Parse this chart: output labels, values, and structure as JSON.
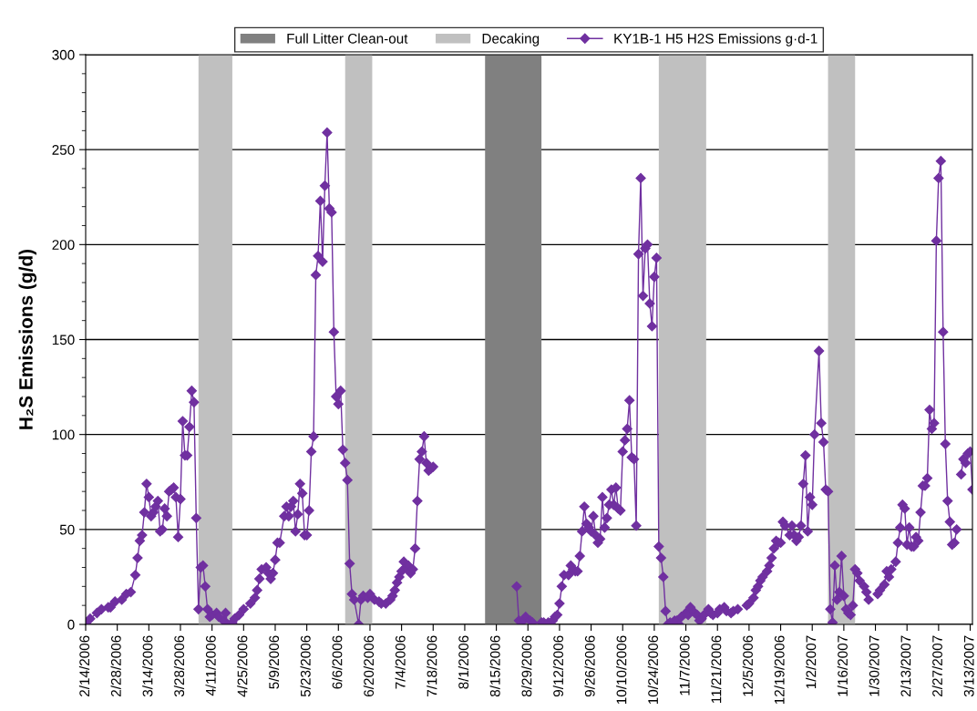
{
  "chart_data": {
    "type": "line",
    "ylabel": "H₂S Emissions (g/d)",
    "legend": "top",
    "grid": "y",
    "marker": "diamond",
    "line_style": "solid",
    "xlim": [
      "2006-02-14",
      "2007-03-14"
    ],
    "ylim": [
      0,
      300
    ],
    "yticks": [
      0,
      {
        "value": 10,
        "label": null
      },
      {
        "value": 20,
        "label": null
      },
      {
        "value": 30,
        "label": null
      },
      {
        "value": 40,
        "label": null
      },
      50,
      {
        "value": 60,
        "label": null
      },
      {
        "value": 70,
        "label": null
      },
      {
        "value": 80,
        "label": null
      },
      {
        "value": 90,
        "label": null
      },
      100,
      {
        "value": 110,
        "label": null
      },
      {
        "value": 120,
        "label": null
      },
      {
        "value": 130,
        "label": null
      },
      {
        "value": 140,
        "label": null
      },
      150,
      {
        "value": 160,
        "label": null
      },
      {
        "value": 170,
        "label": null
      },
      {
        "value": 180,
        "label": null
      },
      {
        "value": 190,
        "label": null
      },
      200,
      {
        "value": 210,
        "label": null
      },
      {
        "value": 220,
        "label": null
      },
      {
        "value": 230,
        "label": null
      },
      {
        "value": 240,
        "label": null
      },
      250,
      {
        "value": 260,
        "label": null
      },
      {
        "value": 270,
        "label": null
      },
      {
        "value": 280,
        "label": null
      },
      {
        "value": 290,
        "label": null
      },
      300
    ],
    "xticks": [
      {
        "value": "2006-02-14",
        "label": "2/14/2006"
      },
      {
        "value": "2006-02-28",
        "label": "2/28/2006"
      },
      {
        "value": "2006-03-14",
        "label": "3/14/2006"
      },
      {
        "value": "2006-03-28",
        "label": "3/28/2006"
      },
      {
        "value": "2006-04-11",
        "label": "4/11/2006"
      },
      {
        "value": "2006-04-25",
        "label": "4/25/2006"
      },
      {
        "value": "2006-05-09",
        "label": "5/9/2006"
      },
      {
        "value": "2006-05-23",
        "label": "5/23/2006"
      },
      {
        "value": "2006-06-06",
        "label": "6/6/2006"
      },
      {
        "value": "2006-06-20",
        "label": "6/20/2006"
      },
      {
        "value": "2006-07-04",
        "label": "7/4/2006"
      },
      {
        "value": "2006-07-18",
        "label": "7/18/2006"
      },
      {
        "value": "2006-08-01",
        "label": "8/1/2006"
      },
      {
        "value": "2006-08-15",
        "label": "8/15/2006"
      },
      {
        "value": "2006-08-29",
        "label": "8/29/2006"
      },
      {
        "value": "2006-09-12",
        "label": "9/12/2006"
      },
      {
        "value": "2006-09-26",
        "label": "9/26/2006"
      },
      {
        "value": "2006-10-10",
        "label": "10/10/2006"
      },
      {
        "value": "2006-10-24",
        "label": "10/24/2006"
      },
      {
        "value": "2006-11-07",
        "label": "11/7/2006"
      },
      {
        "value": "2006-11-21",
        "label": "11/21/2006"
      },
      {
        "value": "2006-12-05",
        "label": "12/5/2006"
      },
      {
        "value": "2006-12-19",
        "label": "12/19/2006"
      },
      {
        "value": "2007-01-02",
        "label": "1/2/2007"
      },
      {
        "value": "2007-01-16",
        "label": "1/16/2007"
      },
      {
        "value": "2007-01-30",
        "label": "1/30/2007"
      },
      {
        "value": "2007-02-13",
        "label": "2/13/2007"
      },
      {
        "value": "2007-02-27",
        "label": "2/27/2007"
      },
      {
        "value": "2007-03-13",
        "label": "3/13/2007"
      }
    ],
    "bands": [
      {
        "axis": "x",
        "from": "2006-08-10",
        "to": "2006-09-04",
        "label": "Full Litter Clean-out",
        "color": "#808080"
      },
      {
        "axis": "x",
        "from": "2006-04-05",
        "to": "2006-04-20",
        "label": "Decaking",
        "color": "#c0c0c0"
      },
      {
        "axis": "x",
        "from": "2006-06-09",
        "to": "2006-06-21",
        "color": "#c0c0c0"
      },
      {
        "axis": "x",
        "from": "2006-10-26",
        "to": "2006-11-16",
        "color": "#c0c0c0"
      },
      {
        "axis": "x",
        "from": "2007-01-09",
        "to": "2007-01-21",
        "color": "#c0c0c0"
      }
    ],
    "series": [
      {
        "name": "KY1B-1 H5 H2S Emissions g·d-1",
        "color": "#7030a0",
        "x": [
          "2006-02-14",
          "2006-02-16",
          "2006-02-19",
          "2006-02-21",
          "2006-02-24",
          "2006-02-25",
          "2006-02-27",
          "2006-03-02",
          "2006-03-04",
          "2006-03-06",
          "2006-03-08",
          "2006-03-09",
          "2006-03-10",
          "2006-03-11",
          "2006-03-12",
          "2006-03-13",
          "2006-03-14",
          "2006-03-15",
          "2006-03-16",
          "2006-03-17",
          "2006-03-18",
          "2006-03-19",
          "2006-03-20",
          "2006-03-21",
          "2006-03-22",
          "2006-03-23",
          "2006-03-24",
          "2006-03-25",
          "2006-03-26",
          "2006-03-27",
          "2006-03-28",
          "2006-03-29",
          "2006-03-30",
          "2006-03-31",
          "2006-04-01",
          "2006-04-02",
          "2006-04-03",
          "2006-04-04",
          "2006-04-05",
          "2006-04-06",
          "2006-04-07",
          "2006-04-08",
          "2006-04-09",
          "2006-04-10",
          "2006-04-11",
          "2006-04-13",
          "2006-04-14",
          "2006-04-16",
          "2006-04-17",
          "2006-04-18",
          "2006-04-20",
          "2006-04-21",
          "2006-04-23",
          "2006-04-25",
          "2006-04-28",
          "2006-04-30",
          "2006-05-01",
          "2006-05-02",
          "2006-05-03",
          "2006-05-05",
          "2006-05-06",
          "2006-05-07",
          "2006-05-08",
          "2006-05-09",
          "2006-05-10",
          "2006-05-11",
          "2006-05-13",
          "2006-05-14",
          "2006-05-15",
          "2006-05-16",
          "2006-05-17",
          "2006-05-18",
          "2006-05-19",
          "2006-05-20",
          "2006-05-21",
          "2006-05-22",
          "2006-05-23",
          "2006-05-24",
          "2006-05-25",
          "2006-05-26",
          "2006-05-27",
          "2006-05-28",
          "2006-05-29",
          "2006-05-30",
          "2006-05-31",
          "2006-06-01",
          "2006-06-02",
          "2006-06-03",
          "2006-06-04",
          "2006-06-05",
          "2006-06-06",
          "2006-06-07",
          "2006-06-08",
          "2006-06-09",
          "2006-06-10",
          "2006-06-11",
          "2006-06-12",
          "2006-06-13",
          "2006-06-15",
          "2006-06-16",
          "2006-06-17",
          "2006-06-19",
          "2006-06-20",
          "2006-06-22",
          "2006-06-24",
          "2006-06-25",
          "2006-06-27",
          "2006-06-29",
          "2006-06-30",
          "2006-07-01",
          "2006-07-02",
          "2006-07-03",
          "2006-07-04",
          "2006-07-05",
          "2006-07-06",
          "2006-07-07",
          "2006-07-08",
          "2006-07-09",
          "2006-07-10",
          "2006-07-11",
          "2006-07-12",
          "2006-07-13",
          "2006-07-14",
          "2006-07-15",
          "2006-07-16",
          "2006-07-17",
          "2006-07-18",
          "2006-08-01",
          "2006-08-24",
          "2006-08-25",
          "2006-08-27",
          "2006-08-28",
          "2006-08-30",
          "2006-08-31",
          "2006-09-04",
          "2006-09-05",
          "2006-09-07",
          "2006-09-09",
          "2006-09-10",
          "2006-09-11",
          "2006-09-12",
          "2006-09-13",
          "2006-09-14",
          "2006-09-16",
          "2006-09-17",
          "2006-09-18",
          "2006-09-19",
          "2006-09-20",
          "2006-09-21",
          "2006-09-22",
          "2006-09-23",
          "2006-09-24",
          "2006-09-25",
          "2006-09-26",
          "2006-09-27",
          "2006-09-28",
          "2006-09-29",
          "2006-09-30",
          "2006-10-01",
          "2006-10-02",
          "2006-10-03",
          "2006-10-04",
          "2006-10-05",
          "2006-10-06",
          "2006-10-07",
          "2006-10-08",
          "2006-10-09",
          "2006-10-10",
          "2006-10-11",
          "2006-10-12",
          "2006-10-13",
          "2006-10-14",
          "2006-10-15",
          "2006-10-16",
          "2006-10-17",
          "2006-10-18",
          "2006-10-19",
          "2006-10-20",
          "2006-10-21",
          "2006-10-22",
          "2006-10-23",
          "2006-10-24",
          "2006-10-25",
          "2006-10-26",
          "2006-10-27",
          "2006-10-28",
          "2006-10-29",
          "2006-10-30",
          "2006-10-31",
          "2006-11-02",
          "2006-11-03",
          "2006-11-04",
          "2006-11-05",
          "2006-11-07",
          "2006-11-08",
          "2006-11-09",
          "2006-11-11",
          "2006-11-12",
          "2006-11-13",
          "2006-11-14",
          "2006-11-15",
          "2006-11-17",
          "2006-11-18",
          "2006-11-19",
          "2006-11-21",
          "2006-11-22",
          "2006-11-24",
          "2006-11-25",
          "2006-11-27",
          "2006-11-28",
          "2006-11-30",
          "2006-12-01",
          "2006-12-04",
          "2006-12-05",
          "2006-12-07",
          "2006-12-08",
          "2006-12-09",
          "2006-12-10",
          "2006-12-11",
          "2006-12-13",
          "2006-12-14",
          "2006-12-15",
          "2006-12-16",
          "2006-12-17",
          "2006-12-18",
          "2006-12-19",
          "2006-12-20",
          "2006-12-21",
          "2006-12-23",
          "2006-12-24",
          "2006-12-25",
          "2006-12-26",
          "2006-12-27",
          "2006-12-28",
          "2006-12-29",
          "2006-12-30",
          "2006-12-31",
          "2007-01-01",
          "2007-01-02",
          "2007-01-03",
          "2007-01-05",
          "2007-01-06",
          "2007-01-07",
          "2007-01-08",
          "2007-01-09",
          "2007-01-10",
          "2007-01-11",
          "2007-01-12",
          "2007-01-13",
          "2007-01-14",
          "2007-01-15",
          "2007-01-16",
          "2007-01-17",
          "2007-01-18",
          "2007-01-19",
          "2007-01-20",
          "2007-01-21",
          "2007-01-22",
          "2007-01-23",
          "2007-01-25",
          "2007-01-26",
          "2007-01-27",
          "2007-01-29",
          "2007-01-31",
          "2007-02-01",
          "2007-02-03",
          "2007-02-04",
          "2007-02-05",
          "2007-02-06",
          "2007-02-08",
          "2007-02-09",
          "2007-02-10",
          "2007-02-11",
          "2007-02-12",
          "2007-02-13",
          "2007-02-14",
          "2007-02-15",
          "2007-02-16",
          "2007-02-17",
          "2007-02-18",
          "2007-02-19",
          "2007-02-20",
          "2007-02-21",
          "2007-02-22",
          "2007-02-23",
          "2007-02-24",
          "2007-02-25",
          "2007-02-26",
          "2007-02-27",
          "2007-02-28",
          "2007-03-01",
          "2007-03-02",
          "2007-03-03",
          "2007-03-04",
          "2007-03-05",
          "2007-03-06",
          "2007-03-07",
          "2007-03-08",
          "2007-03-09",
          "2007-03-10",
          "2007-03-11",
          "2007-03-12",
          "2007-03-13",
          "2007-03-14"
        ],
        "values": [
          1,
          3,
          6,
          8,
          9,
          9,
          12,
          13,
          16,
          17,
          26,
          35,
          44,
          47,
          59,
          74,
          67,
          57,
          59,
          62,
          65,
          49,
          50,
          61,
          57,
          70,
          71,
          72,
          67,
          46,
          66,
          107,
          89,
          89,
          104,
          123,
          117,
          56,
          8,
          30,
          31,
          20,
          8,
          4,
          5,
          6,
          4,
          2,
          6,
          0,
          1,
          3,
          5,
          8,
          11,
          14,
          18,
          24,
          29,
          30,
          27,
          24,
          27,
          34,
          43,
          43,
          57,
          62,
          57,
          62,
          65,
          49,
          58,
          74,
          69,
          47,
          47,
          60,
          91,
          99,
          184,
          194,
          223,
          191,
          231,
          259,
          219,
          217,
          154,
          120,
          116,
          123,
          92,
          85,
          76,
          32,
          16,
          13,
          0,
          13,
          15,
          14,
          16,
          13,
          12,
          11,
          11,
          13,
          15,
          18,
          22,
          25,
          28,
          33,
          30,
          31,
          27,
          29,
          40,
          65,
          87,
          91,
          99,
          85,
          81,
          82,
          83,
          null,
          20,
          2,
          2,
          4,
          2,
          1,
          1,
          1,
          1,
          2,
          4,
          5,
          11,
          20,
          26,
          26,
          31,
          29,
          28,
          28,
          36,
          49,
          62,
          53,
          51,
          49,
          57,
          47,
          43,
          45,
          67,
          51,
          56,
          63,
          71,
          63,
          72,
          61,
          60,
          91,
          97,
          103,
          118,
          88,
          87,
          52,
          195,
          235,
          173,
          198,
          200,
          169,
          157,
          183,
          193,
          41,
          35,
          25,
          7,
          0,
          1,
          2,
          2,
          0,
          4,
          6,
          5,
          9,
          6,
          5,
          2,
          3,
          5,
          8,
          6,
          5,
          6,
          8,
          9,
          7,
          6,
          7,
          8,
          null,
          10,
          11,
          14,
          18,
          20,
          23,
          25,
          28,
          31,
          35,
          40,
          44,
          43,
          43,
          54,
          52,
          47,
          52,
          47,
          44,
          46,
          52,
          74,
          89,
          49,
          67,
          63,
          100,
          144,
          106,
          96,
          71,
          70,
          8,
          1,
          31,
          13,
          17,
          36,
          15,
          8,
          6,
          5,
          10,
          29,
          27,
          23,
          20,
          17,
          13,
          null,
          16,
          18,
          21,
          28,
          25,
          29,
          33,
          43,
          51,
          63,
          61,
          42,
          51,
          41,
          41,
          46,
          44,
          59,
          73,
          73,
          77,
          113,
          103,
          106,
          202,
          235,
          244,
          154,
          95,
          65,
          54,
          42,
          43,
          50,
          null,
          79,
          87,
          85,
          90,
          91,
          71
        ]
      }
    ]
  }
}
